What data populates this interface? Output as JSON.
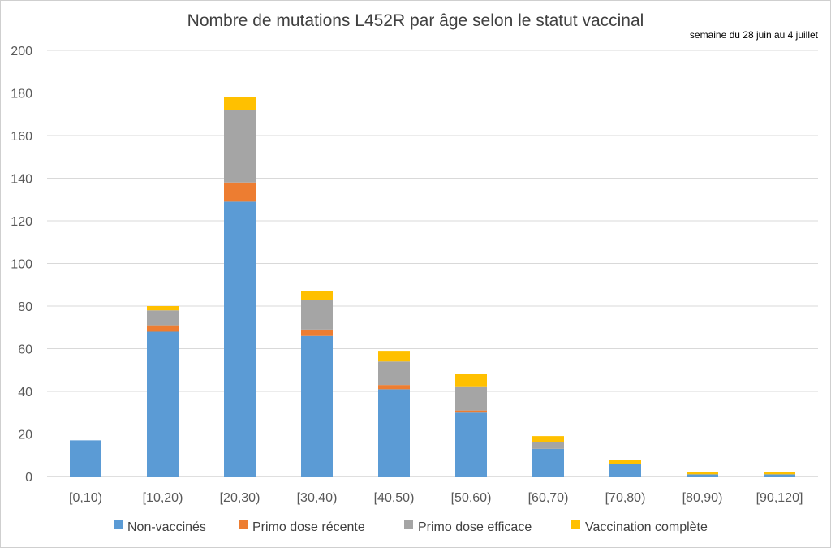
{
  "chart_data": {
    "type": "bar",
    "stacked": true,
    "title": "Nombre de mutations L452R par âge selon le statut vaccinal",
    "subtitle": "semaine du 28 juin au 4 juillet",
    "xlabel": "",
    "ylabel": "",
    "ylim": [
      0,
      200
    ],
    "yticks": [
      0,
      20,
      40,
      60,
      80,
      100,
      120,
      140,
      160,
      180,
      200
    ],
    "grid": true,
    "legend_position": "bottom",
    "categories": [
      "[0,10)",
      "[10,20)",
      "[20,30)",
      "[30,40)",
      "[40,50)",
      "[50,60)",
      "[60,70)",
      "[70,80)",
      "[80,90)",
      "[90,120]"
    ],
    "series": [
      {
        "name": "Non-vaccinés",
        "color": "#5B9BD5",
        "values": [
          17,
          68,
          129,
          66,
          41,
          30,
          13,
          6,
          1,
          1
        ]
      },
      {
        "name": "Primo dose récente",
        "color": "#ED7D31",
        "values": [
          0,
          3,
          9,
          3,
          2,
          1,
          0,
          0,
          0,
          0
        ]
      },
      {
        "name": "Primo dose efficace",
        "color": "#A5A5A5",
        "values": [
          0,
          7,
          34,
          14,
          11,
          11,
          3,
          0,
          0,
          0
        ]
      },
      {
        "name": "Vaccination complète",
        "color": "#FFC000",
        "values": [
          0,
          2,
          6,
          4,
          5,
          6,
          3,
          2,
          1,
          1
        ]
      }
    ]
  }
}
